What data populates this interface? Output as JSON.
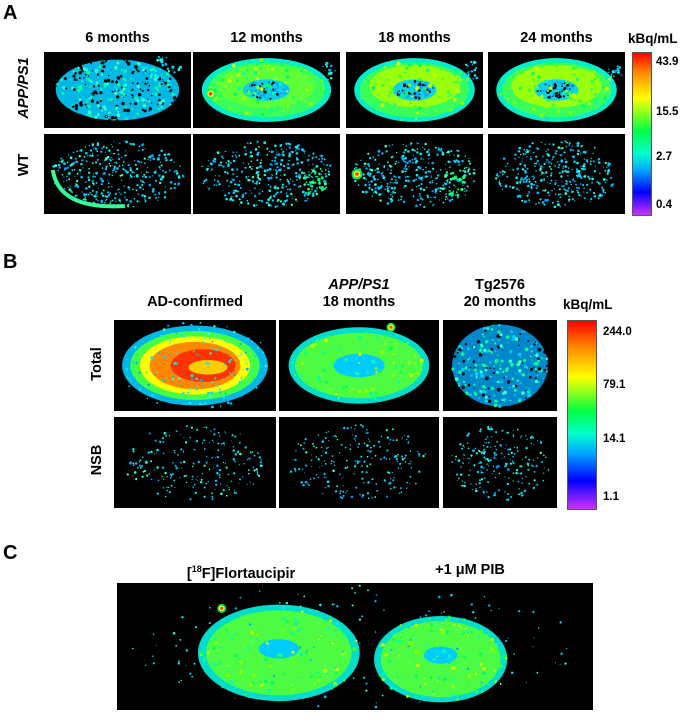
{
  "panel_a": {
    "letter": "A",
    "columns": [
      "6 months",
      "12 months",
      "18 months",
      "24 months"
    ],
    "rows": [
      {
        "label": "APP/PS1",
        "italic": true
      },
      {
        "label": "WT",
        "italic": false
      }
    ],
    "colorbar": {
      "unit": "kBq/mL",
      "ticks": [
        "43.9",
        "15.5",
        "2.7",
        "0.4"
      ]
    }
  },
  "panel_b": {
    "letter": "B",
    "columns": [
      {
        "line1": "AD-confirmed",
        "line2": ""
      },
      {
        "line1": "APP/PS1",
        "line1_italic": true,
        "line2": "18 months"
      },
      {
        "line1": "Tg2576",
        "line2": "20 months"
      }
    ],
    "rows": [
      "Total",
      "NSB"
    ],
    "colorbar": {
      "unit": "kBq/mL",
      "ticks": [
        "244.0",
        "79.1",
        "14.1",
        "1.1"
      ]
    }
  },
  "panel_c": {
    "letter": "C",
    "left_label_prefix": "[",
    "left_label_sup": "18",
    "left_label_suffix": "F]Flortaucipir",
    "right_label": "+1 μM PIB"
  },
  "colors": {
    "background": "#000000",
    "colormap": [
      "#cc33ff",
      "#0000ff",
      "#00ccff",
      "#00ff66",
      "#ffff00",
      "#ff6600",
      "#ff0000"
    ]
  }
}
